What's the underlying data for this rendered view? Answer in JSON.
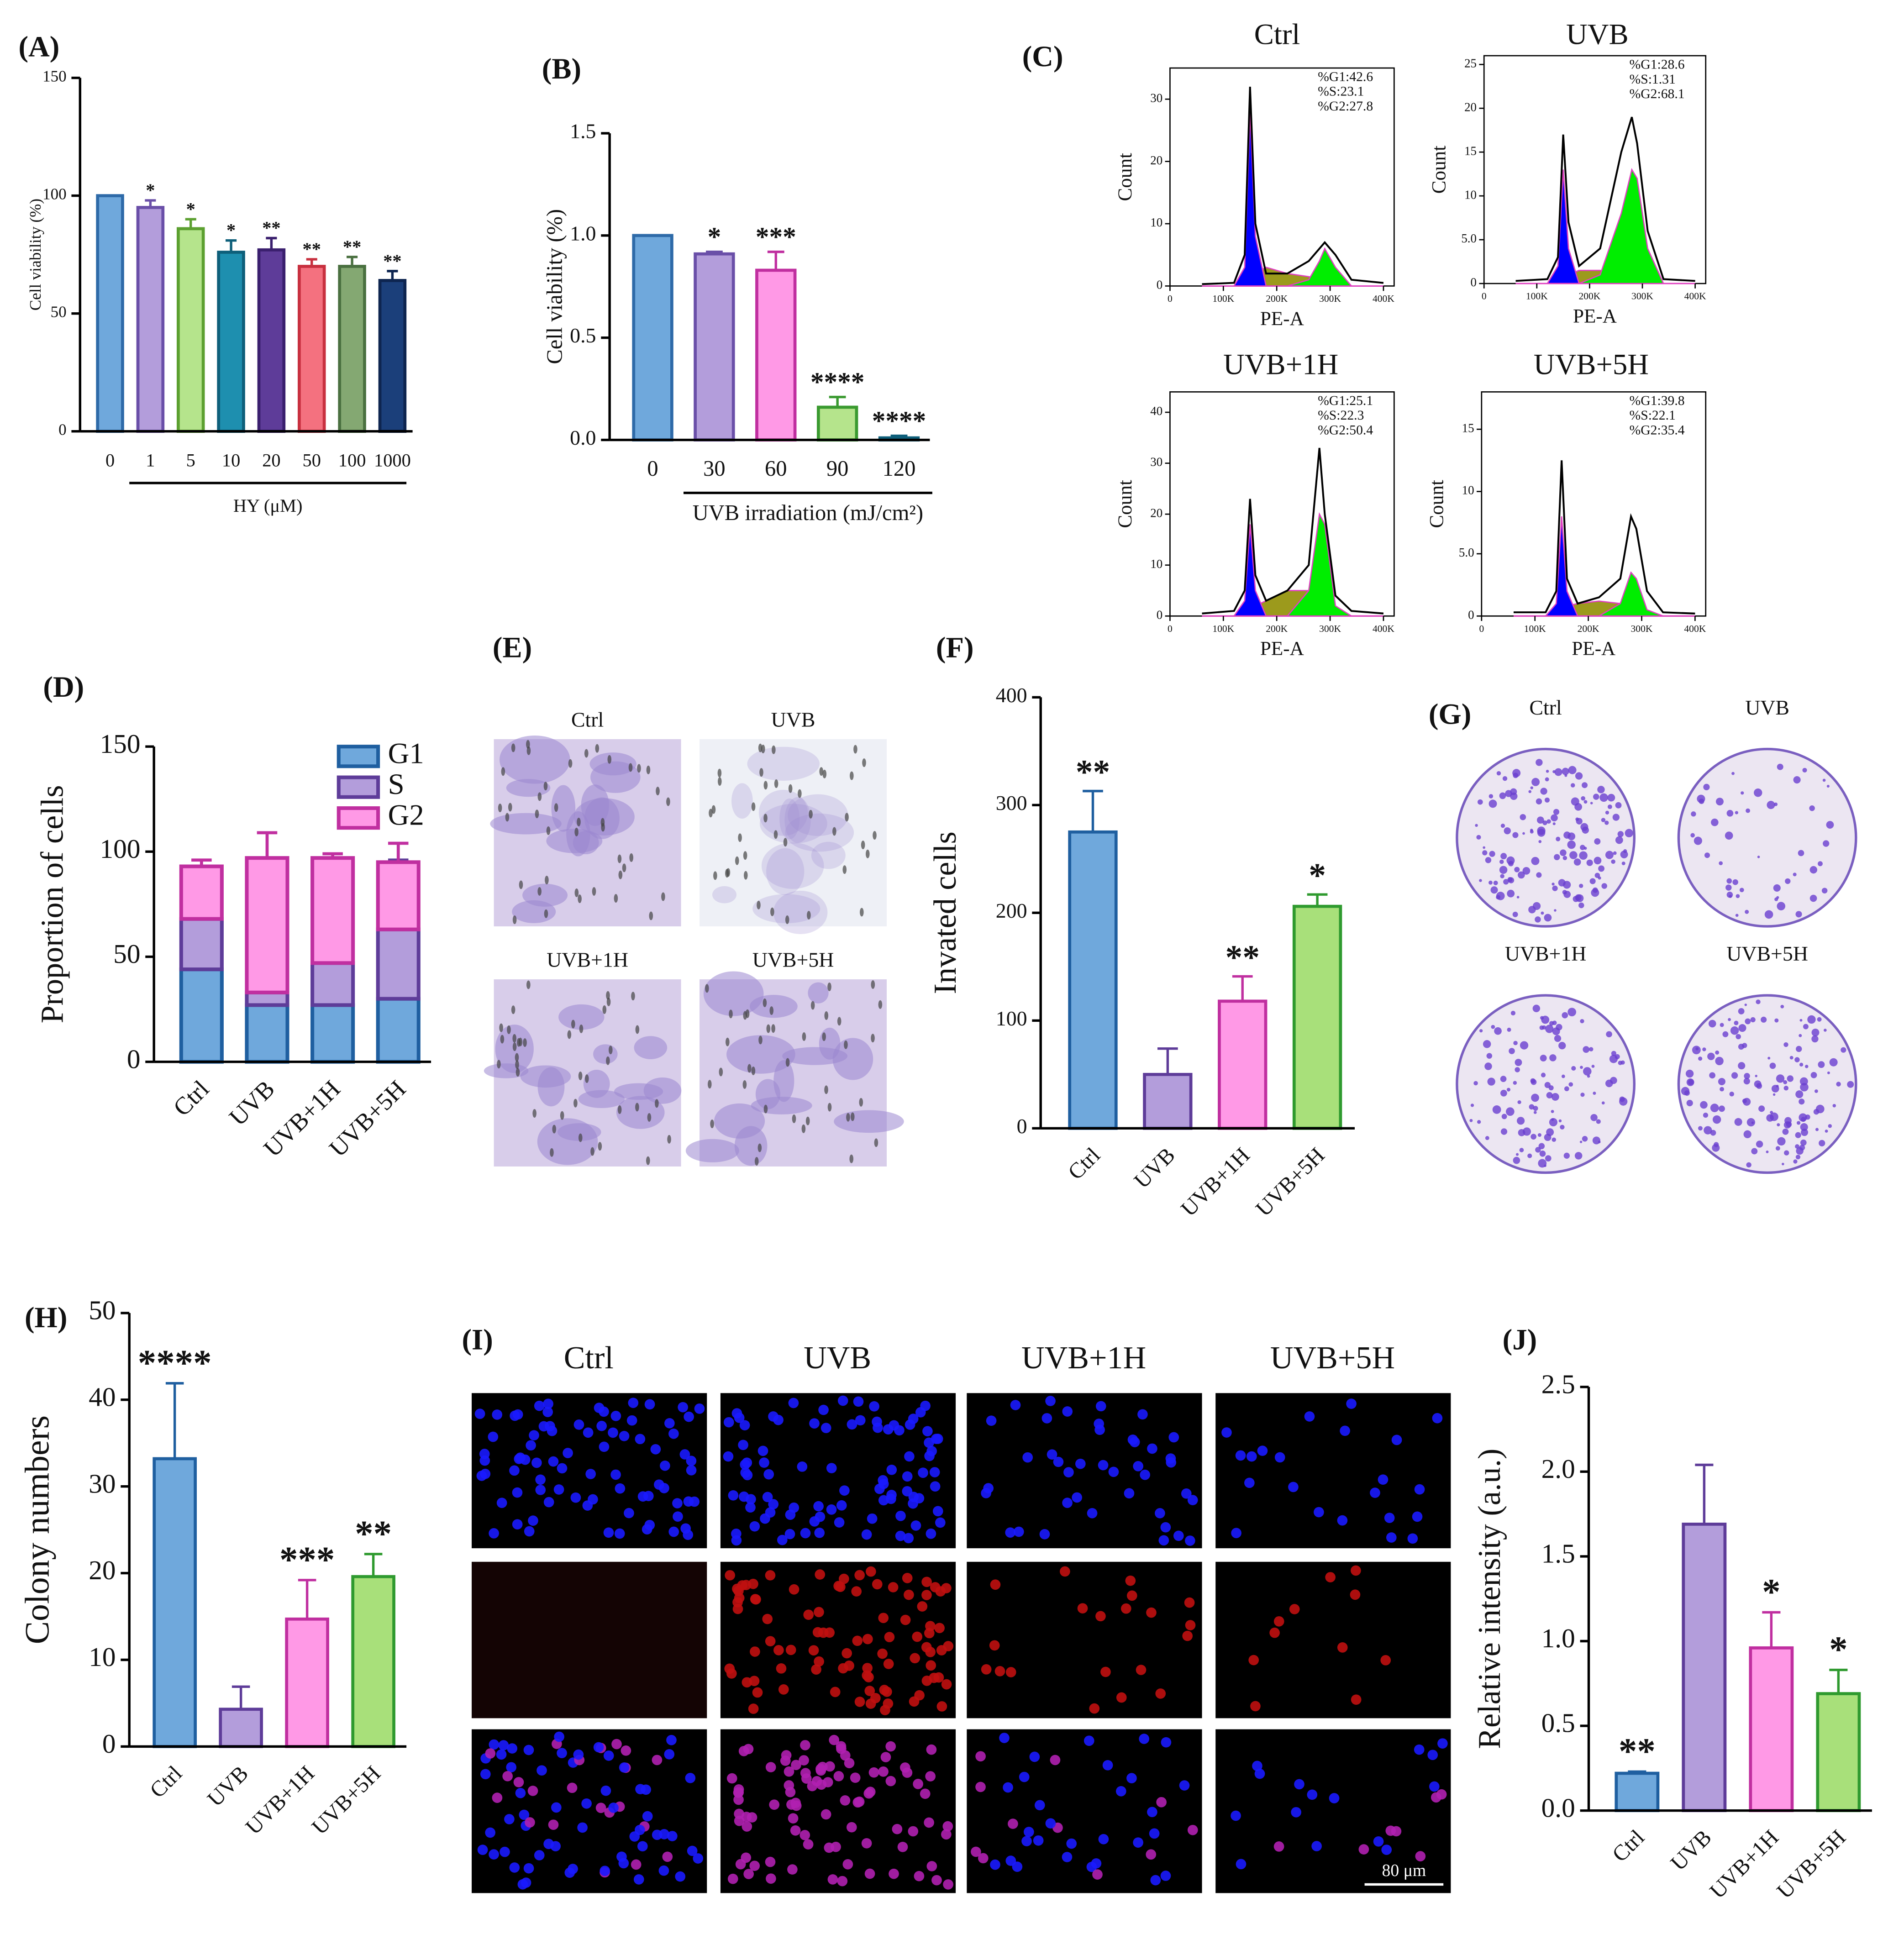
{
  "chart_data": [
    {
      "type": "bar",
      "panel": "(A)",
      "categories": [
        "0",
        "1",
        "5",
        "10",
        "20",
        "50",
        "100",
        "1000"
      ],
      "values": [
        100,
        95,
        86,
        76,
        77,
        70,
        70,
        64
      ],
      "errors": [
        0,
        3,
        4,
        5,
        5,
        3,
        4,
        4
      ],
      "stars": [
        null,
        "*",
        "*",
        "*",
        "**",
        "**",
        "**",
        "**"
      ],
      "colors": [
        "#6fa8dc",
        "#b39ddb",
        "#b5e48c",
        "#1e8faf",
        "#5e3c99",
        "#f4717f",
        "#84a872",
        "#1b3f7a"
      ],
      "edge_colors": [
        "#2e6aa8",
        "#6a4fa8",
        "#5ca030",
        "#0e5f7a",
        "#3a1f6e",
        "#c8303f",
        "#4a7040",
        "#0e2550"
      ],
      "ylabel": "Cell viability (%)",
      "xlabel": "HY (μM)",
      "ylim": [
        0,
        150
      ],
      "yticks": [
        0,
        50,
        100,
        150
      ]
    },
    {
      "type": "bar",
      "panel": "(B)",
      "categories": [
        "0",
        "30",
        "60",
        "90",
        "120"
      ],
      "values": [
        1.0,
        0.91,
        0.83,
        0.16,
        0.01
      ],
      "errors": [
        0,
        0.01,
        0.09,
        0.05,
        0.01
      ],
      "stars": [
        null,
        "*",
        "***",
        "****",
        "****"
      ],
      "colors": [
        "#6fa8dc",
        "#b39ddb",
        "#ff99e6",
        "#b5e48c",
        "#1e8faf"
      ],
      "edge_colors": [
        "#2e6aa8",
        "#6a4fa8",
        "#c02fa0",
        "#3a9a30",
        "#0e5f7a"
      ],
      "ylabel": "Cell viability  (%)",
      "xlabel": "UVB irradiation (mJ/cm²)",
      "ylim": [
        0,
        1.5
      ],
      "yticks": [
        {
          "value": 0,
          "label": "0.0"
        },
        0.5,
        {
          "value": 1,
          "label": "1.0"
        },
        1.5
      ]
    },
    {
      "type": "flow",
      "panel": "(C)",
      "title": "Ctrl",
      "xlabel": "PE-A",
      "ylabel": "Count",
      "x": [
        60,
        120,
        140,
        150,
        160,
        180,
        220,
        260,
        280,
        290,
        310,
        340,
        400
      ],
      "series": [
        {
          "style": "area",
          "color": "#9c9a1c",
          "values": [
            0,
            0,
            0.5,
            1.5,
            2,
            3,
            2,
            1.5,
            1,
            0.5,
            0,
            0,
            0
          ]
        },
        {
          "style": "area",
          "color": "#0000ff",
          "values": [
            0,
            0,
            3,
            28,
            8,
            0,
            0,
            0,
            0,
            0,
            0,
            0,
            0
          ]
        },
        {
          "style": "area",
          "color": "#00ee00",
          "values": [
            0,
            0,
            0,
            0,
            0,
            0,
            0,
            1,
            4,
            6,
            3,
            0,
            0
          ]
        },
        {
          "style": "line",
          "color": "#000000",
          "values": [
            0.3,
            0.5,
            5,
            32,
            10,
            2,
            2,
            4,
            6,
            7,
            5,
            1,
            0.5
          ]
        }
      ],
      "xlim": [
        0,
        420
      ],
      "xticks": [
        0,
        {
          "value": 100,
          "label": "100K"
        },
        {
          "value": 200,
          "label": "200K"
        },
        {
          "value": 300,
          "label": "300K"
        },
        {
          "value": 400,
          "label": "400K"
        }
      ],
      "ylim": [
        0,
        35
      ],
      "yticks": [
        0,
        10,
        20,
        30
      ],
      "annotations": [
        "%G1:42.6",
        "%S:23.1",
        "%G2:27.8"
      ]
    },
    {
      "type": "flow",
      "title": "UVB",
      "xlabel": "PE-A",
      "ylabel": "Count",
      "x": [
        60,
        120,
        140,
        150,
        160,
        180,
        220,
        260,
        280,
        290,
        310,
        340,
        400
      ],
      "series": [
        {
          "style": "area",
          "color": "#9c9a1c",
          "values": [
            0,
            0,
            0,
            0.5,
            1,
            1.5,
            1.5,
            1,
            0.5,
            0,
            0,
            0,
            0
          ]
        },
        {
          "style": "area",
          "color": "#0000ff",
          "values": [
            0,
            0,
            2,
            13,
            4,
            0,
            0,
            0,
            0,
            0,
            0,
            0,
            0
          ]
        },
        {
          "style": "area",
          "color": "#00ee00",
          "values": [
            0,
            0,
            0,
            0,
            0,
            0,
            1,
            8,
            13,
            12,
            4,
            0,
            0
          ]
        },
        {
          "style": "line",
          "color": "#000000",
          "values": [
            0.3,
            0.5,
            3,
            17,
            7,
            2,
            4,
            15,
            19,
            16,
            6,
            0.5,
            0.3
          ]
        }
      ],
      "xlim": [
        0,
        420
      ],
      "xticks": [
        0,
        {
          "value": 100,
          "label": "100K"
        },
        {
          "value": 200,
          "label": "200K"
        },
        {
          "value": 300,
          "label": "300K"
        },
        {
          "value": 400,
          "label": "400K"
        }
      ],
      "ylim": [
        0,
        26
      ],
      "yticks": [
        0,
        {
          "value": 5,
          "label": "5.0"
        },
        10,
        15,
        20,
        25
      ],
      "annotations": [
        "%G1:28.6",
        "%S:1.31",
        "%G2:68.1"
      ]
    },
    {
      "type": "flow",
      "title": "UVB+1H",
      "xlabel": "PE-A",
      "ylabel": "Count",
      "x": [
        60,
        120,
        140,
        150,
        160,
        180,
        220,
        260,
        280,
        290,
        310,
        340,
        400
      ],
      "series": [
        {
          "style": "area",
          "color": "#9c9a1c",
          "values": [
            0,
            0,
            0,
            1,
            2,
            3,
            5,
            5,
            3,
            1,
            0,
            0,
            0
          ]
        },
        {
          "style": "area",
          "color": "#0000ff",
          "values": [
            0,
            0,
            3,
            18,
            5,
            0,
            0,
            0,
            0,
            0,
            0,
            0,
            0
          ]
        },
        {
          "style": "area",
          "color": "#00ee00",
          "values": [
            0,
            0,
            0,
            0,
            0,
            0,
            0,
            5,
            20,
            18,
            2,
            0,
            0
          ]
        },
        {
          "style": "line",
          "color": "#000000",
          "values": [
            0.5,
            1,
            5,
            23,
            8,
            3,
            5,
            10,
            33,
            20,
            4,
            1,
            0.5
          ]
        }
      ],
      "xlim": [
        0,
        420
      ],
      "xticks": [
        0,
        {
          "value": 100,
          "label": "100K"
        },
        {
          "value": 200,
          "label": "200K"
        },
        {
          "value": 300,
          "label": "300K"
        },
        {
          "value": 400,
          "label": "400K"
        }
      ],
      "ylim": [
        0,
        44
      ],
      "yticks": [
        0,
        10,
        20,
        30,
        40
      ],
      "annotations": [
        "%G1:25.1",
        "%S:22.3",
        "%G2:50.4"
      ]
    },
    {
      "type": "flow",
      "title": "UVB+5H",
      "xlabel": "PE-A",
      "ylabel": "Count",
      "x": [
        60,
        120,
        140,
        150,
        160,
        180,
        220,
        260,
        280,
        290,
        310,
        340,
        400
      ],
      "series": [
        {
          "style": "area",
          "color": "#9c9a1c",
          "values": [
            0,
            0,
            0,
            0.5,
            0.8,
            1,
            1.2,
            1,
            0.6,
            0.3,
            0,
            0,
            0
          ]
        },
        {
          "style": "area",
          "color": "#0000ff",
          "values": [
            0,
            0,
            1,
            8,
            2,
            0,
            0,
            0,
            0,
            0,
            0,
            0,
            0
          ]
        },
        {
          "style": "area",
          "color": "#00ee00",
          "values": [
            0,
            0,
            0,
            0,
            0,
            0,
            0,
            1,
            3.5,
            3,
            0.5,
            0,
            0
          ]
        },
        {
          "style": "line",
          "color": "#000000",
          "values": [
            0.3,
            0.3,
            2,
            12.5,
            3,
            1,
            1.5,
            3,
            8,
            7,
            2,
            0.3,
            0.2
          ]
        }
      ],
      "xlim": [
        0,
        420
      ],
      "xticks": [
        0,
        {
          "value": 100,
          "label": "100K"
        },
        {
          "value": 200,
          "label": "200K"
        },
        {
          "value": 300,
          "label": "300K"
        },
        {
          "value": 400,
          "label": "400K"
        }
      ],
      "ylim": [
        0,
        18
      ],
      "yticks": [
        0,
        {
          "value": 5,
          "label": "5.0"
        },
        10,
        15
      ],
      "annotations": [
        "%G1:39.8",
        "%S:22.1",
        "%G2:35.4"
      ]
    },
    {
      "type": "stacked_bar",
      "panel": "(D)",
      "categories": [
        "Ctrl",
        "UVB",
        "UVB+1H",
        "UVB+5H"
      ],
      "series": [
        {
          "name": "G1",
          "color": "#6fa8dc",
          "edge_color": "#1f5fa0",
          "values": [
            44,
            27,
            27,
            30
          ],
          "errors": [
            3,
            5,
            6,
            12
          ]
        },
        {
          "name": "S",
          "color": "#b39ddb",
          "edge_color": "#5e3c99",
          "values": [
            24,
            6,
            20,
            33
          ],
          "errors": [
            2,
            8,
            5,
            33
          ]
        },
        {
          "name": "G2",
          "color": "#ff99e6",
          "edge_color": "#c02fa0",
          "values": [
            25,
            64,
            50,
            32
          ],
          "errors": [
            3,
            12,
            2,
            9
          ]
        }
      ],
      "ylabel": "Proportion of cells",
      "ylim": [
        0,
        150
      ],
      "yticks": [
        0,
        50,
        100,
        150
      ],
      "legend": "upper right"
    },
    {
      "type": "micrograph",
      "panel": "(E)",
      "labels": [
        "Ctrl",
        "UVB",
        "UVB+1H",
        "UVB+5H"
      ]
    },
    {
      "type": "bar",
      "panel": "(F)",
      "categories": [
        "Ctrl",
        "UVB",
        "UVB+1H",
        "UVB+5H"
      ],
      "values": [
        275,
        50,
        118,
        206
      ],
      "errors": [
        38,
        24,
        23,
        11
      ],
      "stars": [
        "**",
        null,
        "**",
        "*"
      ],
      "colors": [
        "#6fa8dc",
        "#b39ddb",
        "#ff99e6",
        "#a8e07a"
      ],
      "edge_colors": [
        "#1f5fa0",
        "#5e3c99",
        "#c02fa0",
        "#2f9a2f"
      ],
      "ylabel": "Invated cells",
      "ylim": [
        0,
        400
      ],
      "yticks": [
        0,
        100,
        200,
        300,
        400
      ]
    },
    {
      "type": "dish",
      "panel": "(G)",
      "labels": [
        "Ctrl",
        "UVB",
        "UVB+1H",
        "UVB+5H"
      ]
    },
    {
      "type": "bar",
      "panel": "(H)",
      "categories": [
        "Ctrl",
        "UVB",
        "UVB+1H",
        "UVB+5H"
      ],
      "values": [
        33.2,
        4.3,
        14.7,
        19.6
      ],
      "errors": [
        8.7,
        2.6,
        4.5,
        2.6
      ],
      "stars": [
        "****",
        null,
        "***",
        "**"
      ],
      "colors": [
        "#6fa8dc",
        "#b39ddb",
        "#ff99e6",
        "#a8e07a"
      ],
      "edge_colors": [
        "#1f5fa0",
        "#5e3c99",
        "#c02fa0",
        "#2f9a2f"
      ],
      "ylabel": "Colony numbers",
      "ylim": [
        0,
        50
      ],
      "yticks": [
        0,
        10,
        20,
        30,
        40,
        50
      ]
    },
    {
      "type": "fluorescence",
      "panel": "(I)",
      "labels": [
        "Ctrl",
        "UVB",
        "UVB+1H",
        "UVB+5H"
      ],
      "scale_label": "80 μm"
    },
    {
      "type": "bar",
      "panel": "(J)",
      "categories": [
        "Ctrl",
        "UVB",
        "UVB+1H",
        "UVB+5H"
      ],
      "values": [
        0.22,
        1.69,
        0.96,
        0.69
      ],
      "errors": [
        0.01,
        0.35,
        0.21,
        0.14
      ],
      "stars": [
        "**",
        null,
        "*",
        "*"
      ],
      "colors": [
        "#6fa8dc",
        "#b39ddb",
        "#ff99e6",
        "#a8e07a"
      ],
      "edge_colors": [
        "#1f5fa0",
        "#5e3c99",
        "#c02fa0",
        "#2f9a2f"
      ],
      "ylabel": "Relative intensity (a.u.)",
      "ylim": [
        0,
        2.5
      ],
      "yticks": [
        {
          "value": 0,
          "label": "0.0"
        },
        0.5,
        {
          "value": 1,
          "label": "1.0"
        },
        1.5,
        {
          "value": 2,
          "label": "2.0"
        },
        2.5
      ]
    }
  ]
}
